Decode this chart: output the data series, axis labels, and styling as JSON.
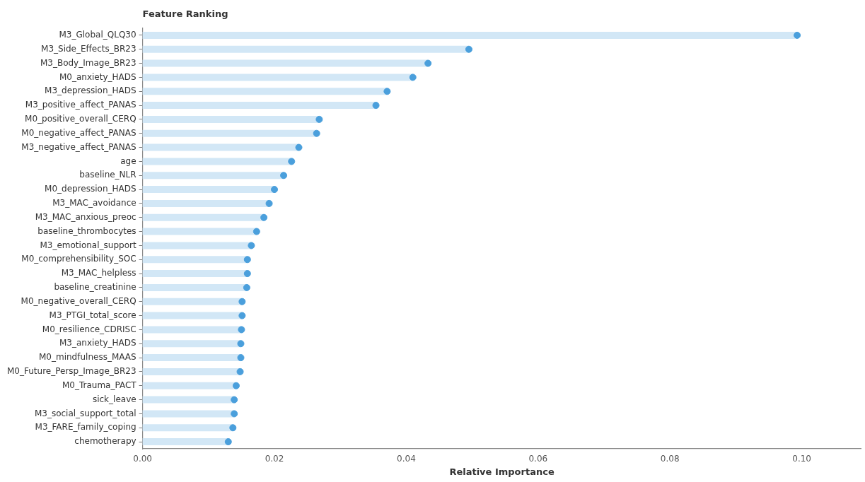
{
  "chart_data": {
    "type": "lollipop",
    "orientation": "horizontal",
    "title": "Feature Ranking",
    "xlabel": "Relative Importance",
    "categories": [
      "M3_Global_QLQ30",
      "M3_Side_Effects_BR23",
      "M3_Body_Image_BR23",
      "M0_anxiety_HADS",
      "M3_depression_HADS",
      "M3_positive_affect_PANAS",
      "M0_positive_overall_CERQ",
      "M0_negative_affect_PANAS",
      "M3_negative_affect_PANAS",
      "age",
      "baseline_NLR",
      "M0_depression_HADS",
      "M3_MAC_avoidance",
      "M3_MAC_anxious_preoc",
      "baseline_thrombocytes",
      "M3_emotional_support",
      "M0_comprehensibility_SOC",
      "M3_MAC_helpless",
      "baseline_creatinine",
      "M0_negative_overall_CERQ",
      "M3_PTGI_total_score",
      "M0_resilience_CDRISC",
      "M3_anxiety_HADS",
      "M0_mindfulness_MAAS",
      "M0_Future_Persp_Image_BR23",
      "M0_Trauma_PACT",
      "sick_leave",
      "M3_social_support_total",
      "M3_FARE_family_coping",
      "chemotherapy"
    ],
    "series": [
      {
        "color": "#4a9fdc",
        "values": [
          0.0993,
          0.0495,
          0.0433,
          0.041,
          0.0371,
          0.0354,
          0.0268,
          0.0264,
          0.0237,
          0.0226,
          0.0214,
          0.02,
          0.0192,
          0.0184,
          0.0173,
          0.0165,
          0.0159,
          0.0159,
          0.0158,
          0.0151,
          0.0151,
          0.015,
          0.0149,
          0.0149,
          0.0148,
          0.0142,
          0.0139,
          0.0139,
          0.0137,
          0.013
        ]
      }
    ],
    "xlim": [
      0,
      0.109
    ],
    "xticks": [
      {
        "value": 0,
        "label": "0.00"
      },
      {
        "value": 0.02,
        "label": "0.02"
      },
      {
        "value": 0.04,
        "label": "0.04"
      },
      {
        "value": 0.06,
        "label": "0.06"
      },
      {
        "value": 0.08,
        "label": "0.08"
      },
      {
        "value": 0.1,
        "label": "0.10"
      }
    ],
    "grid": false,
    "legend": false,
    "marker": "circle"
  }
}
